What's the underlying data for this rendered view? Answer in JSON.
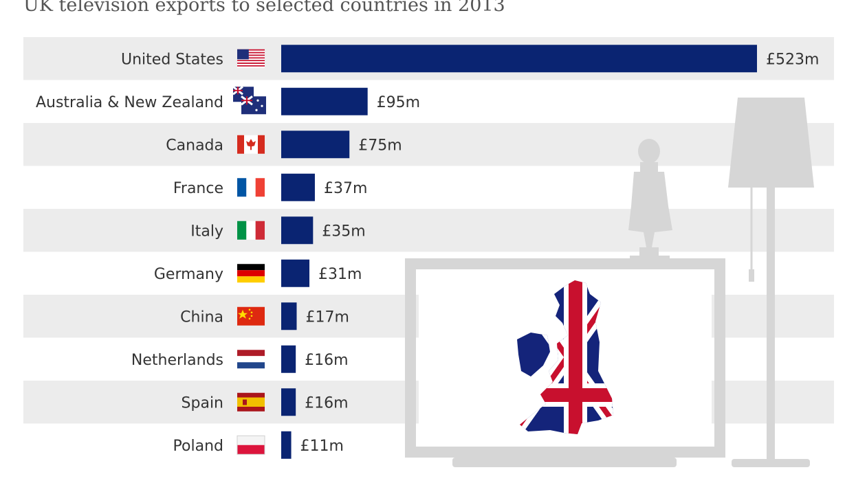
{
  "subtitle": "UK television exports to selected countries in 2013",
  "colors": {
    "bar": "#0a2472",
    "band": "#ececec",
    "text": "#333333",
    "illustration": "#d6d6d6"
  },
  "illustration_icons": [
    "floor-lamp-icon",
    "figurine-icon",
    "television-icon",
    "uk-map-union-jack-icon"
  ],
  "chart_data": {
    "type": "bar",
    "orientation": "horizontal",
    "title": "",
    "subtitle": "UK television exports to selected countries in 2013",
    "xlabel": "",
    "ylabel": "",
    "unit_prefix": "£",
    "unit_suffix": "m",
    "categories": [
      "United States",
      "Australia & New Zealand",
      "Canada",
      "France",
      "Italy",
      "Germany",
      "China",
      "Netherlands",
      "Spain",
      "Poland"
    ],
    "values": [
      523,
      95,
      75,
      37,
      35,
      31,
      17,
      16,
      16,
      11
    ],
    "value_labels": [
      "£523m",
      "£95m",
      "£75m",
      "£37m",
      "£35m",
      "£31m",
      "£17m",
      "£16m",
      "£16m",
      "£11m"
    ],
    "flags": [
      "us-flag-icon",
      "australia-new-zealand-flag-icon",
      "canada-flag-icon",
      "france-flag-icon",
      "italy-flag-icon",
      "germany-flag-icon",
      "china-flag-icon",
      "netherlands-flag-icon",
      "spain-flag-icon",
      "poland-flag-icon"
    ],
    "xlim": [
      0,
      523
    ],
    "grid": false,
    "legend": "none",
    "alternating_bands": true
  }
}
